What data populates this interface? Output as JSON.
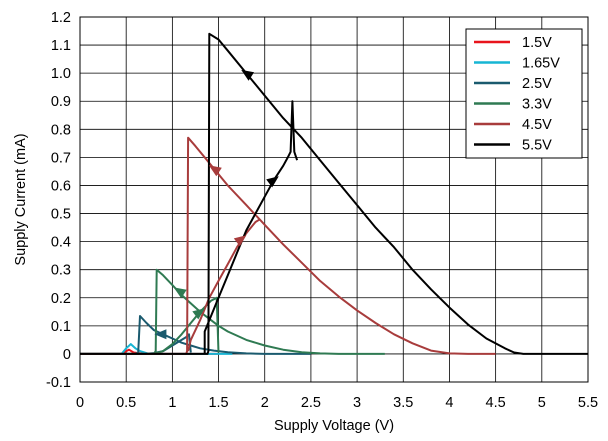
{
  "chart_data": {
    "type": "line",
    "xlabel": "Supply Voltage (V)",
    "ylabel": "Supply Current (mA)",
    "xlim": [
      0,
      5.5
    ],
    "ylim": [
      -0.1,
      1.2
    ],
    "xticks": [
      0,
      0.5,
      1,
      1.5,
      2,
      2.5,
      3,
      3.5,
      4,
      4.5,
      5,
      5.5
    ],
    "xtick_labels": [
      "0",
      "0.5",
      "1",
      "1.5",
      "2",
      "2.5",
      "3",
      "3.5",
      "4",
      "4.5",
      "5",
      "5.5"
    ],
    "yticks": [
      -0.1,
      0,
      0.1,
      0.2,
      0.3,
      0.4,
      0.5,
      0.6,
      0.7,
      0.8,
      0.9,
      1.0,
      1.1,
      1.2
    ],
    "ytick_labels": [
      "-0.1",
      "0",
      "0.1",
      "0.2",
      "0.3",
      "0.4",
      "0.5",
      "0.6",
      "0.7",
      "0.8",
      "0.9",
      "1.0",
      "1.1",
      "1.2"
    ],
    "grid": true,
    "legend_position": "top-right",
    "series": [
      {
        "name": "1.5V",
        "color": "#e8141c",
        "points": [
          [
            0,
            0
          ],
          [
            0.45,
            0
          ],
          [
            0.5,
            0.01
          ],
          [
            0.53,
            0.015
          ],
          [
            0.58,
            0.005
          ],
          [
            0.7,
            0
          ],
          [
            1.0,
            0
          ],
          [
            1.5,
            0
          ]
        ],
        "arrows": []
      },
      {
        "name": "1.65V",
        "color": "#17b5d4",
        "points": [
          [
            0,
            0
          ],
          [
            0.45,
            0
          ],
          [
            0.5,
            0.02
          ],
          [
            0.55,
            0.035
          ],
          [
            0.6,
            0.02
          ],
          [
            0.65,
            0.01
          ],
          [
            0.75,
            0
          ],
          [
            1.0,
            0
          ],
          [
            1.4,
            0
          ],
          [
            1.65,
            0
          ]
        ],
        "arrows": []
      },
      {
        "name": "2.5V",
        "color": "#1a5a6e",
        "points": [
          [
            0,
            0
          ],
          [
            0.6,
            0
          ],
          [
            0.63,
            0.005
          ],
          [
            0.65,
            0.135
          ],
          [
            0.72,
            0.11
          ],
          [
            0.8,
            0.085
          ],
          [
            0.9,
            0.07
          ],
          [
            1.0,
            0.055
          ],
          [
            1.1,
            0.04
          ],
          [
            1.2,
            0.03
          ],
          [
            1.3,
            0.02
          ],
          [
            1.45,
            0.012
          ],
          [
            1.6,
            0.006
          ],
          [
            1.8,
            0.002
          ],
          [
            2.0,
            0
          ],
          [
            2.5,
            0
          ]
        ],
        "path_back": [
          [
            1.2,
            0.005
          ],
          [
            1.18,
            0.07
          ],
          [
            1.15,
            0.06
          ],
          [
            1.1,
            0.05
          ],
          [
            1.0,
            0.03
          ],
          [
            0.9,
            0.01
          ],
          [
            0.8,
            0.003
          ],
          [
            0.7,
            0
          ],
          [
            0.6,
            0
          ]
        ],
        "arrows": [
          [
            0.87,
            0.07,
            "left"
          ]
        ]
      },
      {
        "name": "3.3V",
        "color": "#2f7a52",
        "points": [
          [
            0,
            0
          ],
          [
            0.8,
            0
          ],
          [
            0.82,
            0.01
          ],
          [
            0.83,
            0.3
          ],
          [
            0.9,
            0.28
          ],
          [
            1.0,
            0.245
          ],
          [
            1.1,
            0.21
          ],
          [
            1.2,
            0.18
          ],
          [
            1.3,
            0.15
          ],
          [
            1.4,
            0.125
          ],
          [
            1.5,
            0.1
          ],
          [
            1.6,
            0.08
          ],
          [
            1.8,
            0.05
          ],
          [
            2.0,
            0.03
          ],
          [
            2.2,
            0.015
          ],
          [
            2.4,
            0.006
          ],
          [
            2.6,
            0.002
          ],
          [
            2.8,
            0
          ],
          [
            3.3,
            0
          ]
        ],
        "path_back": [
          [
            1.5,
            0.005
          ],
          [
            1.48,
            0.2
          ],
          [
            1.42,
            0.19
          ],
          [
            1.3,
            0.15
          ],
          [
            1.2,
            0.11
          ],
          [
            1.1,
            0.07
          ],
          [
            1.0,
            0.035
          ],
          [
            0.9,
            0.01
          ],
          [
            0.8,
            0
          ]
        ],
        "arrows": [
          [
            1.07,
            0.225,
            "up-left"
          ],
          [
            1.3,
            0.15,
            "up-right"
          ]
        ]
      },
      {
        "name": "4.5V",
        "color": "#a83c3c",
        "points": [
          [
            0,
            0
          ],
          [
            1.15,
            0
          ],
          [
            1.16,
            0.01
          ],
          [
            1.17,
            0.77
          ],
          [
            1.25,
            0.74
          ],
          [
            1.35,
            0.7
          ],
          [
            1.45,
            0.66
          ],
          [
            1.6,
            0.6
          ],
          [
            1.8,
            0.53
          ],
          [
            2.0,
            0.46
          ],
          [
            2.2,
            0.39
          ],
          [
            2.4,
            0.325
          ],
          [
            2.6,
            0.26
          ],
          [
            2.8,
            0.205
          ],
          [
            3.0,
            0.155
          ],
          [
            3.2,
            0.11
          ],
          [
            3.4,
            0.07
          ],
          [
            3.6,
            0.038
          ],
          [
            3.8,
            0.012
          ],
          [
            4.0,
            0.002
          ],
          [
            4.2,
            0
          ],
          [
            4.5,
            0
          ]
        ],
        "path_back": [
          [
            1.17,
            0.01
          ],
          [
            1.2,
            0.05
          ],
          [
            1.3,
            0.12
          ],
          [
            1.4,
            0.2
          ],
          [
            1.5,
            0.26
          ],
          [
            1.6,
            0.32
          ],
          [
            1.7,
            0.38
          ],
          [
            1.8,
            0.43
          ],
          [
            1.9,
            0.47
          ],
          [
            1.95,
            0.48
          ]
        ],
        "arrows": [
          [
            1.45,
            0.66,
            "up-left"
          ],
          [
            1.75,
            0.41,
            "up-right"
          ]
        ]
      },
      {
        "name": "5.5V",
        "color": "#000000",
        "points": [
          [
            0,
            0
          ],
          [
            1.38,
            0
          ],
          [
            1.39,
            0.01
          ],
          [
            1.4,
            1.14
          ],
          [
            1.5,
            1.12
          ],
          [
            1.6,
            1.08
          ],
          [
            1.8,
            1.0
          ],
          [
            2.0,
            0.92
          ],
          [
            2.2,
            0.84
          ],
          [
            2.4,
            0.77
          ],
          [
            2.6,
            0.69
          ],
          [
            2.8,
            0.61
          ],
          [
            3.0,
            0.53
          ],
          [
            3.2,
            0.45
          ],
          [
            3.4,
            0.38
          ],
          [
            3.6,
            0.3
          ],
          [
            3.8,
            0.23
          ],
          [
            4.0,
            0.165
          ],
          [
            4.2,
            0.105
          ],
          [
            4.4,
            0.055
          ],
          [
            4.6,
            0.02
          ],
          [
            4.7,
            0.005
          ],
          [
            4.8,
            0
          ],
          [
            5.0,
            0
          ],
          [
            5.5,
            0
          ]
        ],
        "path_back": [
          [
            1.35,
            0
          ],
          [
            1.35,
            0.08
          ],
          [
            1.4,
            0.12
          ],
          [
            1.5,
            0.2
          ],
          [
            1.6,
            0.28
          ],
          [
            1.7,
            0.36
          ],
          [
            1.8,
            0.44
          ],
          [
            1.9,
            0.5
          ],
          [
            2.0,
            0.56
          ],
          [
            2.1,
            0.62
          ],
          [
            2.2,
            0.67
          ],
          [
            2.25,
            0.7
          ],
          [
            2.28,
            0.72
          ],
          [
            2.3,
            0.9
          ],
          [
            2.32,
            0.72
          ],
          [
            2.35,
            0.69
          ]
        ],
        "arrows": [
          [
            1.8,
            1.0,
            "up-left"
          ],
          [
            2.1,
            0.62,
            "up-right"
          ]
        ]
      }
    ]
  }
}
